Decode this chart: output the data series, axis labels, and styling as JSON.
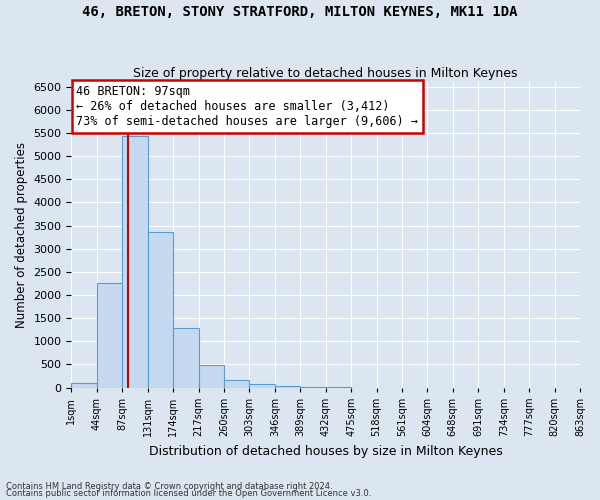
{
  "title1": "46, BRETON, STONY STRATFORD, MILTON KEYNES, MK11 1DA",
  "title2": "Size of property relative to detached houses in Milton Keynes",
  "xlabel": "Distribution of detached houses by size in Milton Keynes",
  "ylabel": "Number of detached properties",
  "footer1": "Contains HM Land Registry data © Crown copyright and database right 2024.",
  "footer2": "Contains public sector information licensed under the Open Government Licence v3.0.",
  "bin_labels": [
    "1sqm",
    "44sqm",
    "87sqm",
    "131sqm",
    "174sqm",
    "217sqm",
    "260sqm",
    "303sqm",
    "346sqm",
    "389sqm",
    "432sqm",
    "475sqm",
    "518sqm",
    "561sqm",
    "604sqm",
    "648sqm",
    "691sqm",
    "734sqm",
    "777sqm",
    "820sqm",
    "863sqm"
  ],
  "bar_values": [
    100,
    2270,
    5430,
    3370,
    1290,
    490,
    155,
    80,
    30,
    10,
    5,
    2,
    1,
    0,
    0,
    0,
    0,
    0,
    0,
    0
  ],
  "bar_color": "#c5d9f0",
  "bar_edge_color": "#5b9bd5",
  "annotation_text": "46 BRETON: 97sqm\n← 26% of detached houses are smaller (3,412)\n73% of semi-detached houses are larger (9,606) →",
  "annotation_box_color": "#ffffff",
  "annotation_box_edge_color": "#cc0000",
  "red_line_color": "#cc0000",
  "red_line_x": 2.227,
  "ylim": [
    0,
    6600
  ],
  "yticks": [
    0,
    500,
    1000,
    1500,
    2000,
    2500,
    3000,
    3500,
    4000,
    4500,
    5000,
    5500,
    6000,
    6500
  ],
  "background_color": "#dce6f1",
  "plot_bg_color": "#dce6f1"
}
